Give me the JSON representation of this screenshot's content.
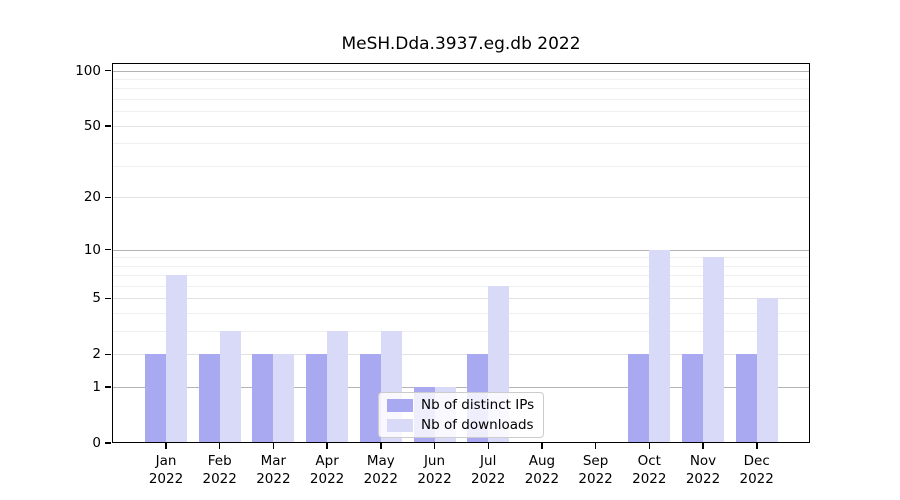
{
  "title": "MeSH.Dda.3937.eg.db 2022",
  "chart_data": {
    "type": "bar",
    "title": "MeSH.Dda.3937.eg.db 2022",
    "categories": [
      {
        "month": "Jan",
        "year": "2022"
      },
      {
        "month": "Feb",
        "year": "2022"
      },
      {
        "month": "Mar",
        "year": "2022"
      },
      {
        "month": "Apr",
        "year": "2022"
      },
      {
        "month": "May",
        "year": "2022"
      },
      {
        "month": "Jun",
        "year": "2022"
      },
      {
        "month": "Jul",
        "year": "2022"
      },
      {
        "month": "Aug",
        "year": "2022"
      },
      {
        "month": "Sep",
        "year": "2022"
      },
      {
        "month": "Oct",
        "year": "2022"
      },
      {
        "month": "Nov",
        "year": "2022"
      },
      {
        "month": "Dec",
        "year": "2022"
      }
    ],
    "series": [
      {
        "name": "Nb of distinct IPs",
        "color": "#a9a9f2",
        "values": [
          2,
          2,
          2,
          2,
          2,
          1,
          2,
          0,
          0,
          2,
          2,
          2
        ]
      },
      {
        "name": "Nb of downloads",
        "color": "#d9d9f8",
        "values": [
          7,
          3,
          2,
          3,
          3,
          1,
          6,
          0,
          0,
          10,
          9,
          5
        ]
      }
    ],
    "xlabel": "",
    "ylabel": "",
    "yaxis": {
      "scale": "log1p",
      "ylim": [
        0,
        110
      ],
      "major_ticks": [
        100,
        50,
        20,
        10,
        5,
        2,
        1,
        0
      ],
      "decade_gridlines": [
        1,
        10,
        100
      ],
      "mid_gridlines": [
        2,
        5,
        20,
        50
      ],
      "minor_gridlines": [
        3,
        4,
        6,
        7,
        8,
        9,
        30,
        40,
        60,
        70,
        80,
        90
      ]
    },
    "grid": true,
    "legend_position": "lower center"
  },
  "legend": {
    "entries": [
      "Nb of distinct IPs",
      "Nb of downloads"
    ]
  },
  "colors": {
    "distinct_ips": "#a9a9f2",
    "downloads": "#d9d9f8",
    "decade_grid": "#b3b3b3",
    "mid_grid": "#e2e2e2",
    "minor_grid": "#efefef",
    "spine": "#000000",
    "legend_border": "#cccccc"
  }
}
